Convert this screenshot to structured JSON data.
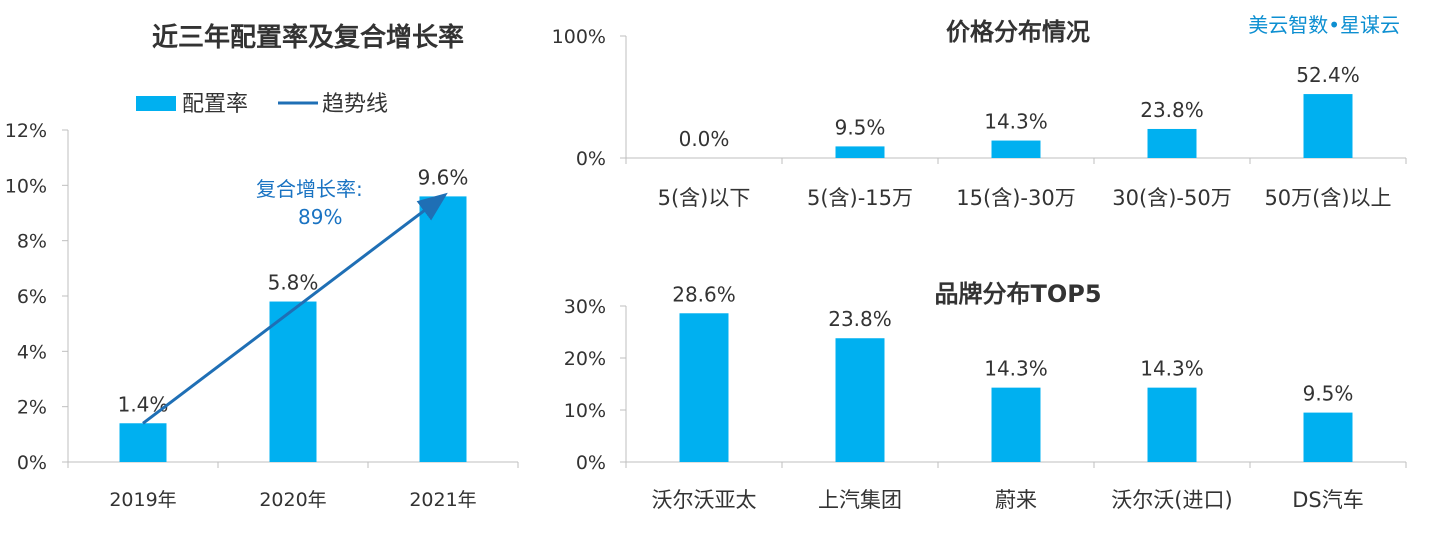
{
  "brand": "美云智数•星谋云",
  "colors": {
    "bar": "#00b0f0",
    "trend": "#1f6fb5",
    "annotation": "#1a73c2",
    "brand": "#0d8fd1"
  },
  "chart_data": [
    {
      "id": "rate",
      "type": "bar",
      "title": "近三年配置率及复合增长率",
      "categories": [
        "2019年",
        "2020年",
        "2021年"
      ],
      "series": [
        {
          "name": "配置率",
          "values": [
            1.4,
            5.8,
            9.6
          ]
        }
      ],
      "value_labels": [
        "1.4%",
        "5.8%",
        "9.6%"
      ],
      "trendline": {
        "name": "趋势线",
        "from_category": "2019年",
        "to_category": "2021年"
      },
      "ylim": [
        0,
        12
      ],
      "yticks": [
        0,
        2,
        4,
        6,
        8,
        10,
        12
      ],
      "ytick_labels": [
        "0%",
        "2%",
        "4%",
        "6%",
        "8%",
        "10%",
        "12%"
      ],
      "legend": [
        "配置率",
        "趋势线"
      ],
      "legend_position": "top",
      "annotation": {
        "line1": "复合增长率:",
        "line2": "89%"
      },
      "grid": false
    },
    {
      "id": "price",
      "type": "bar",
      "title": "价格分布情况",
      "categories": [
        "5(含)以下",
        "5(含)-15万",
        "15(含)-30万",
        "30(含)-50万",
        "50万(含)以上"
      ],
      "values": [
        0.0,
        9.5,
        14.3,
        23.8,
        52.4
      ],
      "value_labels": [
        "0.0%",
        "9.5%",
        "14.3%",
        "23.8%",
        "52.4%"
      ],
      "ylim": [
        0,
        100
      ],
      "yticks": [
        0,
        100
      ],
      "ytick_labels": [
        "0%",
        "100%"
      ],
      "grid": false
    },
    {
      "id": "brand",
      "type": "bar",
      "title": "品牌分布TOP5",
      "categories": [
        "沃尔沃亚太",
        "上汽集团",
        "蔚来",
        "沃尔沃(进口)",
        "DS汽车"
      ],
      "values": [
        28.6,
        23.8,
        14.3,
        14.3,
        9.5
      ],
      "value_labels": [
        "28.6%",
        "23.8%",
        "14.3%",
        "14.3%",
        "9.5%"
      ],
      "ylim": [
        0,
        30
      ],
      "yticks": [
        0,
        10,
        20,
        30
      ],
      "ytick_labels": [
        "0%",
        "10%",
        "20%",
        "30%"
      ],
      "grid": false
    }
  ]
}
